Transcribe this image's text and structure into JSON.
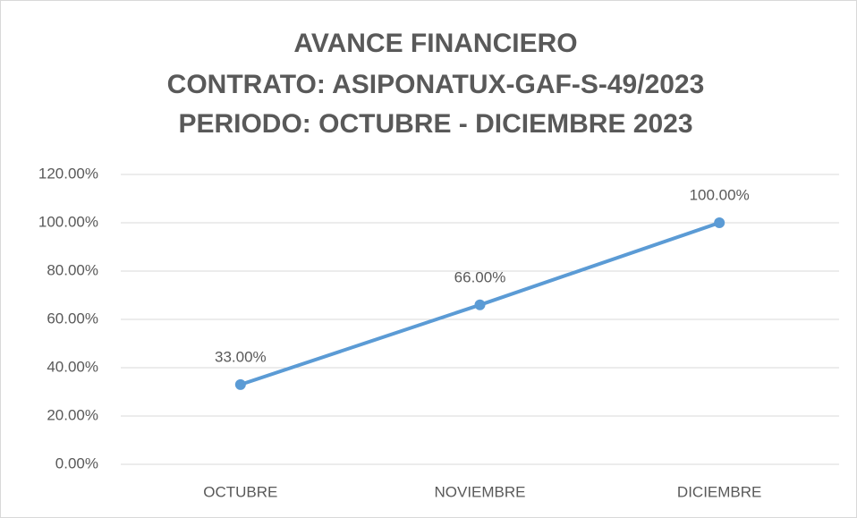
{
  "chart_data": {
    "type": "line",
    "title": [
      "AVANCE FINANCIERO",
      "CONTRATO: ASIPONATUX-GAF-S-49/2023",
      "PERIODO:  OCTUBRE - DICIEMBRE 2023"
    ],
    "categories": [
      "OCTUBRE",
      "NOVIEMBRE",
      "DICIEMBRE"
    ],
    "series": [
      {
        "name": "AVANCE FINANCIERO",
        "color": "#5b9bd5",
        "values": [
          33,
          66,
          100
        ],
        "value_labels": [
          "33.00%",
          "66.00%",
          "100.00%"
        ]
      }
    ],
    "ylim": [
      0,
      120
    ],
    "yticks": [
      {
        "value": 0,
        "label": "0.00%"
      },
      {
        "value": 20,
        "label": "20.00%"
      },
      {
        "value": 40,
        "label": "40.00%"
      },
      {
        "value": 60,
        "label": "60.00%"
      },
      {
        "value": 80,
        "label": "80.00%"
      },
      {
        "value": 100,
        "label": "100.00%"
      },
      {
        "value": 120,
        "label": "120.00%"
      }
    ],
    "grid": true
  }
}
